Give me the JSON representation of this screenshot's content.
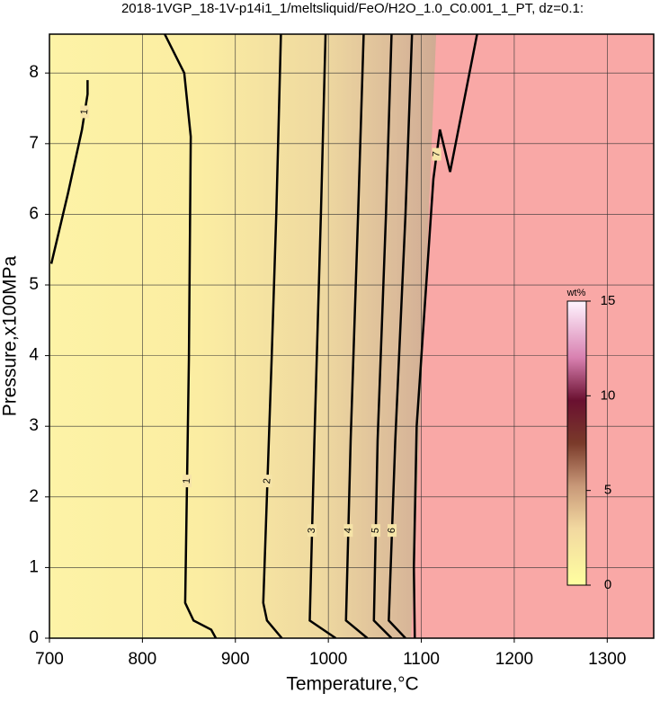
{
  "chart_data": {
    "type": "contour",
    "title": "2018-1VGP_18-1V-p14i1_1/meltsliquid/FeO/H2O_1.0_C0.001_1_PT, dz=0.1:",
    "x_label": "Temperature,°C",
    "y_label": "Pressure,x100MPa",
    "xlim": [
      700,
      1350
    ],
    "xticks": [
      700,
      800,
      900,
      1000,
      1100,
      1200,
      1300
    ],
    "ylim": [
      0,
      8.55
    ],
    "yticks": [
      0,
      1,
      2,
      3,
      4,
      5,
      6,
      7,
      8
    ],
    "grid": true,
    "contours": [
      {
        "level": 1,
        "x": [
          702,
          720,
          735,
          741,
          741
        ],
        "y": [
          5.3,
          6.3,
          7.2,
          7.7,
          7.9
        ]
      },
      {
        "level": 1,
        "x": [
          824,
          845,
          852,
          850,
          846,
          855,
          874,
          879
        ],
        "y": [
          8.55,
          8.0,
          7.1,
          3.95,
          0.5,
          0.25,
          0.12,
          0
        ]
      },
      {
        "level": 2,
        "x": [
          949,
          944,
          939,
          930,
          934,
          950
        ],
        "y": [
          8.55,
          6.0,
          3.95,
          0.5,
          0.25,
          0
        ]
      },
      {
        "level": 3,
        "x": [
          997,
          992,
          985,
          980,
          1008
        ],
        "y": [
          8.55,
          6.0,
          2.8,
          0.25,
          0
        ]
      },
      {
        "level": 4,
        "x": [
          1038,
          1032,
          1024,
          1019,
          1042
        ],
        "y": [
          8.55,
          6.0,
          2.8,
          0.25,
          0
        ]
      },
      {
        "level": 5,
        "x": [
          1068,
          1062,
          1053,
          1049,
          1068
        ],
        "y": [
          8.55,
          6.0,
          2.8,
          0.25,
          0
        ]
      },
      {
        "level": 6,
        "x": [
          1090,
          1083,
          1072,
          1065,
          1083
        ],
        "y": [
          8.55,
          6.0,
          2.8,
          0.25,
          0
        ]
      },
      {
        "level": 7,
        "x": [
          1160,
          1131,
          1120,
          1113,
          1095,
          1092,
          1093
        ],
        "y": [
          8.55,
          6.6,
          7.2,
          6.5,
          3.0,
          1.0,
          0
        ]
      }
    ],
    "region": {
      "color": "#f9a8a6",
      "x": [
        1116,
        1089
      ],
      "y": [
        8.55,
        0
      ]
    },
    "colorbar": {
      "label": "wt%",
      "lim": [
        0,
        15
      ],
      "ticks": [
        0,
        5,
        10,
        15
      ]
    }
  }
}
